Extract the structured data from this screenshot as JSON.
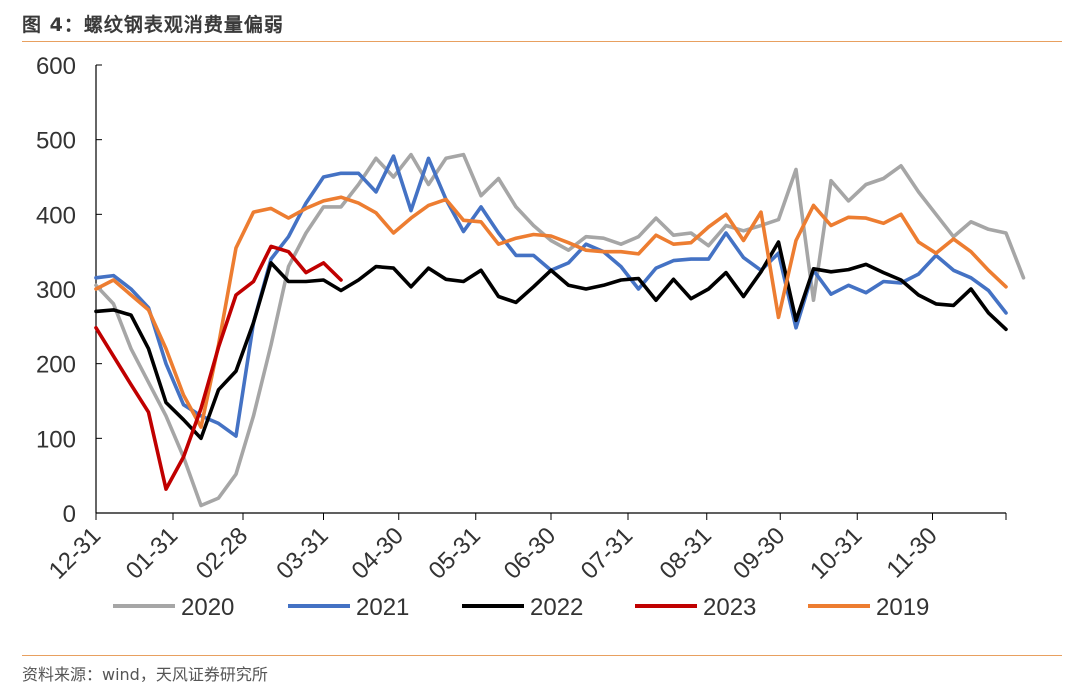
{
  "header": {
    "title": "图 4：螺纹钢表观消费量偏弱"
  },
  "footer": {
    "source": "资料来源：wind，天风证券研究所"
  },
  "colors": {
    "2020": "#a6a6a6",
    "2021": "#4472c4",
    "2022": "#000000",
    "2023": "#c00000",
    "2019": "#ed7d31"
  },
  "chart_data": {
    "type": "line",
    "title": "",
    "xlabel": "",
    "ylabel": "",
    "ylim": [
      0,
      600
    ],
    "yticks": [
      0,
      100,
      200,
      300,
      400,
      500,
      600
    ],
    "x_tick_labels": [
      "12-31",
      "01-31",
      "02-28",
      "03-31",
      "04-30",
      "05-31",
      "06-30",
      "07-31",
      "08-31",
      "09-30",
      "10-31",
      "11-30"
    ],
    "x_tick_weeks": [
      0,
      4.4,
      8.4,
      13,
      17.3,
      21.7,
      26,
      30.4,
      34.9,
      39.1,
      43.5,
      47.8
    ],
    "x_range_weeks": [
      0,
      52
    ],
    "legend_position": "bottom",
    "series": [
      {
        "name": "2020",
        "values": [
          305,
          280,
          220,
          175,
          130,
          75,
          10,
          20,
          52,
          130,
          225,
          330,
          375,
          410,
          410,
          440,
          475,
          450,
          480,
          440,
          475,
          480,
          425,
          448,
          410,
          385,
          365,
          352,
          370,
          368,
          360,
          370,
          395,
          372,
          375,
          358,
          385,
          378,
          385,
          393,
          460,
          285,
          445,
          418,
          440,
          448,
          465,
          430,
          400,
          370,
          390,
          380,
          375,
          315
        ]
      },
      {
        "name": "2021",
        "values": [
          315,
          318,
          300,
          275,
          200,
          145,
          130,
          120,
          103,
          255,
          340,
          370,
          415,
          450,
          455,
          455,
          430,
          478,
          405,
          475,
          420,
          377,
          410,
          375,
          345,
          345,
          325,
          335,
          360,
          350,
          330,
          300,
          328,
          338,
          340,
          340,
          375,
          342,
          325,
          348,
          248,
          325,
          293,
          305,
          295,
          310,
          308,
          320,
          345,
          325,
          315,
          298,
          268
        ]
      },
      {
        "name": "2022",
        "values": [
          270,
          272,
          265,
          220,
          148,
          125,
          100,
          165,
          190,
          255,
          335,
          310,
          310,
          312,
          298,
          312,
          330,
          328,
          303,
          328,
          313,
          310,
          325,
          290,
          282,
          303,
          325,
          305,
          300,
          305,
          312,
          314,
          285,
          313,
          287,
          300,
          322,
          290,
          323,
          363,
          258,
          327,
          323,
          326,
          333,
          322,
          312,
          292,
          280,
          278,
          300,
          268,
          246
        ]
      },
      {
        "name": "2023",
        "values": [
          248,
          210,
          172,
          135,
          32,
          75,
          140,
          222,
          292,
          310,
          357,
          350,
          322,
          335,
          312
        ]
      },
      {
        "name": "2019",
        "values": [
          300,
          312,
          292,
          272,
          220,
          158,
          115,
          225,
          355,
          403,
          408,
          395,
          408,
          418,
          423,
          415,
          402,
          375,
          395,
          412,
          420,
          392,
          390,
          360,
          368,
          373,
          371,
          362,
          352,
          350,
          350,
          347,
          372,
          360,
          362,
          383,
          400,
          365,
          403,
          262,
          365,
          412,
          385,
          396,
          395,
          388,
          400,
          363,
          348,
          367,
          350,
          325,
          303
        ]
      }
    ]
  }
}
